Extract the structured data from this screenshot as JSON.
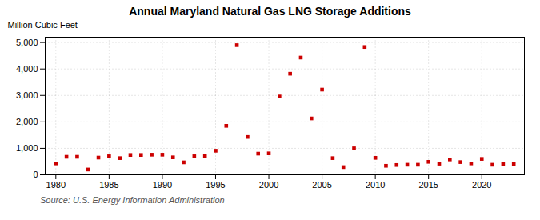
{
  "chart_data": {
    "type": "scatter",
    "title": "Annual Maryland Natural Gas LNG Storage Additions",
    "ylabel": "Million Cubic Feet",
    "source": "Source: U.S. Energy Information Administration",
    "color": "#cc0000",
    "marker": "square",
    "grid": true,
    "xlim": [
      1979,
      2024
    ],
    "ylim": [
      0,
      5200
    ],
    "xticks": [
      1980,
      1985,
      1990,
      1995,
      2000,
      2005,
      2010,
      2015,
      2020
    ],
    "yticks": [
      0,
      {
        "value": 1000,
        "label": "1,000"
      },
      {
        "value": 2000,
        "label": "2,000"
      },
      {
        "value": 3000,
        "label": "3,000"
      },
      {
        "value": 4000,
        "label": "4,000"
      },
      {
        "value": 5000,
        "label": "5,000"
      }
    ],
    "x": [
      1980,
      1981,
      1982,
      1983,
      1984,
      1985,
      1986,
      1987,
      1988,
      1989,
      1990,
      1991,
      1992,
      1993,
      1994,
      1995,
      1996,
      1997,
      1998,
      1999,
      2000,
      2001,
      2002,
      2003,
      2004,
      2005,
      2006,
      2007,
      2008,
      2009,
      2010,
      2011,
      2012,
      2013,
      2014,
      2015,
      2016,
      2017,
      2018,
      2019,
      2020,
      2021,
      2022,
      2023
    ],
    "values": [
      430,
      680,
      680,
      200,
      650,
      700,
      630,
      750,
      750,
      760,
      760,
      660,
      470,
      700,
      720,
      910,
      1850,
      4900,
      1430,
      800,
      810,
      2960,
      3820,
      4430,
      2130,
      3220,
      630,
      290,
      1000,
      4830,
      640,
      340,
      370,
      380,
      380,
      490,
      420,
      580,
      480,
      430,
      600,
      380,
      410,
      400
    ]
  }
}
